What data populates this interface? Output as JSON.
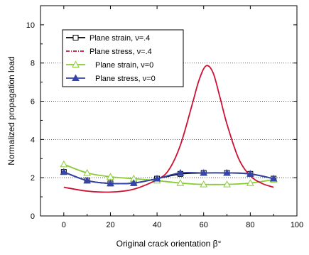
{
  "chart_data": {
    "type": "line",
    "xlabel": "Original crack orientation β°",
    "ylabel": "Normalized propagation load",
    "xlim": [
      -10,
      100
    ],
    "ylim": [
      0,
      11
    ],
    "xticks": [
      0,
      20,
      40,
      60,
      80,
      100
    ],
    "xticks_minor": [
      10,
      30,
      50,
      70,
      90
    ],
    "yticks": [
      0,
      2,
      4,
      6,
      8,
      10
    ],
    "grid": "horizontal dotted at y = 2, 4, 6, 8",
    "legend_position": "top-left",
    "series": [
      {
        "name": "Plane strain, ν=.4",
        "color": "#000000",
        "marker": "open-square",
        "x": [
          0,
          10,
          20,
          30,
          40,
          50,
          60,
          70,
          80,
          90
        ],
        "y": [
          2.3,
          1.85,
          1.7,
          1.72,
          1.95,
          2.2,
          2.25,
          2.25,
          2.2,
          1.95
        ]
      },
      {
        "name": "Plane stress, ν=.4",
        "color": "#cc1133",
        "marker": "none",
        "x": [
          0,
          10,
          20,
          30,
          40,
          45,
          50,
          55,
          58,
          61,
          64,
          67,
          70,
          75,
          80,
          85,
          90
        ],
        "y": [
          1.5,
          1.3,
          1.25,
          1.4,
          1.9,
          2.4,
          3.7,
          5.8,
          7.1,
          7.85,
          7.5,
          6.2,
          4.8,
          3.0,
          2.1,
          1.7,
          1.5
        ]
      },
      {
        "name": "Plane strain, ν=0",
        "color": "#88cc33",
        "marker": "open-triangle",
        "x": [
          0,
          10,
          20,
          30,
          40,
          50,
          60,
          70,
          80,
          90
        ],
        "y": [
          2.7,
          2.25,
          2.05,
          1.95,
          1.85,
          1.72,
          1.65,
          1.65,
          1.72,
          1.9
        ]
      },
      {
        "name": "Plane stress, ν=0",
        "color": "#3344aa",
        "marker": "filled-triangle",
        "x": [
          0,
          10,
          20,
          30,
          40,
          50,
          60,
          70,
          80,
          90
        ],
        "y": [
          2.3,
          1.85,
          1.7,
          1.72,
          1.95,
          2.25,
          2.25,
          2.25,
          2.2,
          1.95
        ]
      }
    ]
  }
}
